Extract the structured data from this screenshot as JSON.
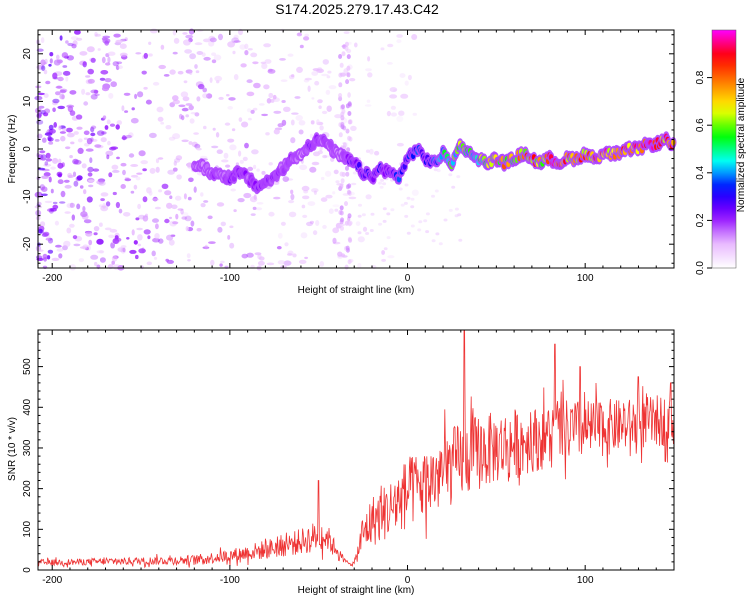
{
  "title": "S174.2025.279.17.43.C42",
  "chart_data": [
    {
      "type": "heatmap",
      "name": "spectrogram",
      "xlabel": "Height of straight line (km)",
      "ylabel": "Frequency (Hz)",
      "xlim": [
        -208,
        150
      ],
      "ylim": [
        -25,
        25
      ],
      "xticks": [
        -200,
        -100,
        0,
        100
      ],
      "yticks": [
        -20,
        -10,
        0,
        10,
        20
      ],
      "colorbar": {
        "label": "Normalized spectral amplitude",
        "range": [
          0,
          1
        ],
        "ticks": [
          "0.0",
          "0.2",
          "0.4",
          "0.6",
          "0.8"
        ],
        "tick_values": [
          0,
          0.2,
          0.4,
          0.6,
          0.8
        ],
        "colors": [
          "#ffffff",
          "#e6b3ff",
          "#8b00ff",
          "#0000ff",
          "#00ffff",
          "#00ff00",
          "#ffff00",
          "#ff8000",
          "#ff0000",
          "#ff00ff"
        ]
      },
      "ridge": {
        "x": [
          -120,
          -110,
          -100,
          -95,
          -90,
          -85,
          -80,
          -75,
          -70,
          -65,
          -60,
          -55,
          -50,
          -45,
          -40,
          -35,
          -30,
          -25,
          -20,
          -15,
          -10,
          -5,
          0,
          5,
          10,
          15,
          20,
          25,
          30,
          35,
          40,
          45,
          50,
          55,
          60,
          65,
          70,
          75,
          80,
          85,
          90,
          95,
          100,
          105,
          110,
          115,
          120,
          125,
          130,
          135,
          140,
          145,
          150
        ],
        "freq": [
          -3,
          -5,
          -6,
          -5,
          -6,
          -8,
          -7,
          -6,
          -4,
          -2,
          -1,
          1,
          2,
          1,
          -1,
          -2,
          -3,
          -5,
          -6,
          -4,
          -5,
          -6,
          -2,
          0,
          -2,
          -3,
          -1,
          -3,
          1,
          -1,
          -2,
          -3,
          -2,
          -3,
          -2,
          -1,
          -2,
          -3,
          -2,
          -3,
          -2,
          -2,
          -1,
          -2,
          -1,
          -1,
          -1,
          0,
          0,
          1,
          1,
          2,
          1
        ],
        "amplitude": [
          0.15,
          0.18,
          0.22,
          0.25,
          0.2,
          0.22,
          0.2,
          0.25,
          0.18,
          0.2,
          0.15,
          0.25,
          0.2,
          0.18,
          0.15,
          0.18,
          0.3,
          0.32,
          0.28,
          0.3,
          0.25,
          0.35,
          0.32,
          0.35,
          0.3,
          0.4,
          0.5,
          0.55,
          0.6,
          0.55,
          0.6,
          0.7,
          0.75,
          0.8,
          0.75,
          0.8,
          0.85,
          0.8,
          0.85,
          0.9,
          0.85,
          0.8,
          0.85,
          0.9,
          0.88,
          0.9,
          0.92,
          0.88,
          0.9,
          0.92,
          0.95,
          0.9,
          0.88
        ]
      },
      "noise_region_x": [
        -208,
        -35
      ],
      "noise_amplitude": 0.15
    },
    {
      "type": "line",
      "name": "snr",
      "xlabel": "Height of straight line (km)",
      "ylabel": "SNR (10 * v/v)",
      "xlim": [
        -208,
        150
      ],
      "ylim": [
        0,
        590
      ],
      "xticks": [
        -200,
        -100,
        0,
        100
      ],
      "yticks": [
        0,
        100,
        200,
        300,
        400,
        500
      ],
      "color": "#ee3333",
      "series": [
        {
          "name": "SNR",
          "x": [
            -208,
            -180,
            -150,
            -120,
            -100,
            -80,
            -60,
            -50,
            -45,
            -40,
            -35,
            -30,
            -25,
            -20,
            -10,
            0,
            10,
            20,
            30,
            40,
            50,
            60,
            70,
            80,
            90,
            100,
            110,
            120,
            130,
            140,
            150
          ],
          "mean": [
            18,
            20,
            22,
            25,
            35,
            50,
            70,
            85,
            80,
            50,
            20,
            15,
            90,
            120,
            150,
            190,
            210,
            240,
            270,
            290,
            300,
            310,
            320,
            330,
            340,
            345,
            350,
            355,
            360,
            365,
            370
          ],
          "spread": [
            10,
            10,
            12,
            15,
            20,
            30,
            40,
            50,
            40,
            20,
            8,
            8,
            60,
            80,
            90,
            110,
            110,
            120,
            120,
            120,
            110,
            110,
            100,
            100,
            100,
            90,
            90,
            80,
            80,
            80,
            80
          ]
        }
      ],
      "peaks": [
        {
          "x": 32,
          "y": 588
        },
        {
          "x": -50,
          "y": 220
        },
        {
          "x": 83,
          "y": 555
        },
        {
          "x": 97,
          "y": 500
        },
        {
          "x": 148,
          "y": 460
        },
        {
          "x": 130,
          "y": 475
        }
      ]
    }
  ]
}
